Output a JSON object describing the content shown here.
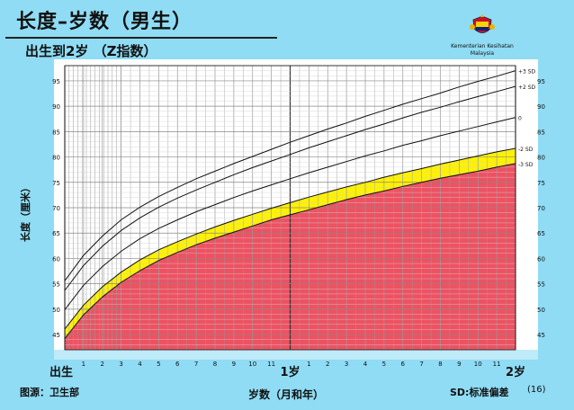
{
  "header": {
    "title": "长度–岁数（男生）",
    "subtitle": "出生到2岁 （Z指数）",
    "org_line1": "Kementerian Kesihatan",
    "org_line2": "Malaysia"
  },
  "footer": {
    "source": "图源：卫生部",
    "sd_note": "SD:标准偏差",
    "page_number": "(16)"
  },
  "colors": {
    "background": "#8fdcf4",
    "plot_bg": "#ffffff",
    "red_zone": "#ee5262",
    "yellow_zone": "#fff200",
    "curve": "#111111",
    "grid": "#999999"
  },
  "chart_data": {
    "type": "line",
    "xlabel": "岁数（月和年）",
    "ylabel": "长度（厘米）",
    "xlim": [
      0,
      24
    ],
    "ylim": [
      42,
      98
    ],
    "ytick_values": [
      45,
      50,
      55,
      60,
      65,
      70,
      75,
      80,
      85,
      90,
      95
    ],
    "x_ticks": [
      {
        "x": 0,
        "label": "出生",
        "major": true
      },
      {
        "x": 1,
        "label": "1"
      },
      {
        "x": 2,
        "label": "2"
      },
      {
        "x": 3,
        "label": "3"
      },
      {
        "x": 4,
        "label": "4"
      },
      {
        "x": 5,
        "label": "5"
      },
      {
        "x": 6,
        "label": "6"
      },
      {
        "x": 7,
        "label": "7"
      },
      {
        "x": 8,
        "label": "8"
      },
      {
        "x": 9,
        "label": "9"
      },
      {
        "x": 10,
        "label": "10"
      },
      {
        "x": 11,
        "label": "11"
      },
      {
        "x": 12,
        "label": "1岁",
        "major": true
      },
      {
        "x": 13,
        "label": "1"
      },
      {
        "x": 14,
        "label": "2"
      },
      {
        "x": 15,
        "label": "3"
      },
      {
        "x": 16,
        "label": "4"
      },
      {
        "x": 17,
        "label": "5"
      },
      {
        "x": 18,
        "label": "6"
      },
      {
        "x": 19,
        "label": "7"
      },
      {
        "x": 20,
        "label": "8"
      },
      {
        "x": 21,
        "label": "9"
      },
      {
        "x": 22,
        "label": "10"
      },
      {
        "x": 23,
        "label": "11"
      },
      {
        "x": 24,
        "label": "2岁",
        "major": true
      }
    ],
    "x": [
      0,
      1,
      2,
      3,
      4,
      5,
      6,
      7,
      8,
      9,
      10,
      11,
      12,
      13,
      14,
      15,
      16,
      17,
      18,
      19,
      20,
      21,
      22,
      23,
      24
    ],
    "series": [
      {
        "name": "+3 SD",
        "values": [
          55.6,
          60.6,
          64.4,
          67.6,
          70.1,
          72.2,
          74.0,
          75.7,
          77.2,
          78.7,
          80.1,
          81.5,
          82.9,
          84.2,
          85.5,
          86.7,
          88.0,
          89.2,
          90.4,
          91.5,
          92.6,
          93.8,
          94.9,
          95.9,
          97.0
        ]
      },
      {
        "name": "+2 SD",
        "values": [
          53.7,
          58.6,
          62.4,
          65.5,
          68.0,
          70.1,
          71.9,
          73.5,
          75.0,
          76.5,
          77.9,
          79.2,
          80.5,
          81.8,
          83.0,
          84.2,
          85.4,
          86.5,
          87.7,
          88.8,
          89.8,
          90.9,
          91.9,
          92.9,
          93.9
        ]
      },
      {
        "name": "0",
        "values": [
          49.9,
          54.7,
          58.4,
          61.4,
          63.9,
          65.9,
          67.6,
          69.2,
          70.6,
          72.0,
          73.3,
          74.5,
          75.7,
          76.9,
          78.0,
          79.1,
          80.2,
          81.2,
          82.3,
          83.2,
          84.2,
          85.1,
          86.0,
          86.9,
          87.8
        ]
      },
      {
        "name": "-2 SD",
        "values": [
          46.1,
          50.8,
          54.4,
          57.3,
          59.7,
          61.7,
          63.3,
          64.8,
          66.2,
          67.5,
          68.7,
          69.9,
          71.0,
          72.1,
          73.1,
          74.1,
          75.0,
          76.0,
          76.9,
          77.7,
          78.6,
          79.4,
          80.2,
          81.0,
          81.7
        ]
      },
      {
        "name": "-3 SD",
        "values": [
          44.2,
          48.9,
          52.4,
          55.3,
          57.6,
          59.6,
          61.2,
          62.7,
          64.0,
          65.2,
          66.4,
          67.6,
          68.6,
          69.6,
          70.6,
          71.6,
          72.5,
          73.3,
          74.2,
          75.0,
          75.8,
          76.5,
          77.2,
          78.0,
          78.7
        ]
      }
    ]
  }
}
